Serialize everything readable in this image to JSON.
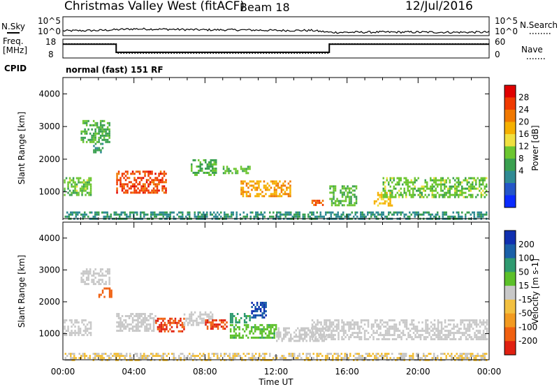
{
  "header": {
    "station": "Christmas Valley West (fitACF)",
    "beam": "Beam 18",
    "date": "12/Jul/2016"
  },
  "chart_data": [
    {
      "name": "noise-panel",
      "type": "line",
      "left_label": "N.Sky",
      "right_label": "N.Search",
      "left_ticks": [
        "10^5",
        "10^0"
      ],
      "right_ticks": [
        "10^5",
        "10^0"
      ],
      "description_series": [
        {
          "legend_style": "solid",
          "x_hours": [
            0,
            2,
            4,
            6,
            8,
            10,
            12,
            14,
            15,
            16,
            18,
            20,
            22,
            24
          ],
          "level": [
            0.2,
            0.22,
            0.3,
            0.28,
            0.25,
            0.25,
            0.22,
            0.22,
            0.12,
            0.12,
            0.13,
            0.13,
            0.12,
            0.13
          ]
        }
      ]
    },
    {
      "name": "freq-nave-panel",
      "type": "line",
      "left_label": [
        "Freq.",
        "[MHz]"
      ],
      "right_label": "Nave",
      "left_ticks": [
        "18",
        "8"
      ],
      "right_ticks": [
        "60",
        "0"
      ],
      "freq_mhz": {
        "x_hours": [
          0,
          3,
          3,
          15,
          15,
          24
        ],
        "y": [
          16,
          16,
          9.5,
          9.5,
          16,
          16
        ]
      },
      "nave": {
        "x_hours": [
          0,
          3,
          3,
          15,
          15,
          24
        ],
        "y": [
          45,
          45,
          15,
          15,
          45,
          45
        ]
      }
    },
    {
      "name": "cpid",
      "label": "CPID",
      "value": "normal (fast) 151 RF"
    },
    {
      "name": "power-panel",
      "type": "heatmap",
      "ylabel": "Slant Range [km]",
      "xlim": [
        0,
        24
      ],
      "ylim": [
        180,
        4500
      ],
      "yticks": [
        1000,
        2000,
        3000,
        4000
      ],
      "colorbar": {
        "label": "Power [dB]",
        "ticks": [
          "4",
          "8",
          "12",
          "16",
          "20",
          "24",
          "28"
        ],
        "colors": [
          "#0a2bff",
          "#2456c8",
          "#2f8a93",
          "#3aa050",
          "#6cc630",
          "#f0e040",
          "#f5b000",
          "#f07800",
          "#f03a00",
          "#e00000"
        ]
      },
      "features": [
        {
          "x": [
            0.05,
            1.6
          ],
          "y": [
            900,
            1450
          ],
          "value_db": 14
        },
        {
          "x": [
            1.0,
            2.6
          ],
          "y": [
            2550,
            3200
          ],
          "value_db": 12
        },
        {
          "x": [
            1.7,
            2.2
          ],
          "y": [
            2200,
            2500
          ],
          "value_db": 10
        },
        {
          "x": [
            3.0,
            5.8
          ],
          "y": [
            1000,
            1650
          ],
          "value_db": 27
        },
        {
          "x": [
            7.2,
            8.6
          ],
          "y": [
            1500,
            2000
          ],
          "value_db": 12
        },
        {
          "x": [
            9.0,
            10.5
          ],
          "y": [
            1550,
            1800
          ],
          "value_db": 14
        },
        {
          "x": [
            10.0,
            12.8
          ],
          "y": [
            850,
            1350
          ],
          "value_db": 22
        },
        {
          "x": [
            14.0,
            14.6
          ],
          "y": [
            620,
            760
          ],
          "value_db": 26
        },
        {
          "x": [
            15.0,
            16.5
          ],
          "y": [
            600,
            1200
          ],
          "value_db": 13
        },
        {
          "x": [
            17.5,
            18.5
          ],
          "y": [
            600,
            1000
          ],
          "value_db": 20
        },
        {
          "x": [
            18.0,
            23.9
          ],
          "y": [
            850,
            1450
          ],
          "value_db": 14
        },
        {
          "x": [
            0.1,
            23.9
          ],
          "y": [
            200,
            400
          ],
          "value_db": 9
        }
      ]
    },
    {
      "name": "velocity-panel",
      "type": "heatmap",
      "ylabel": "Slant Range [km]",
      "xlabel": "Time UT",
      "xlim": [
        0,
        24
      ],
      "ylim": [
        180,
        4500
      ],
      "yticks": [
        1000,
        2000,
        3000,
        4000
      ],
      "xticks": [
        "00:00",
        "04:00",
        "08:00",
        "12:00",
        "16:00",
        "20:00",
        "00:00"
      ],
      "colorbar": {
        "label": "Velocity [m s-1]",
        "ticks": [
          "200",
          "100",
          "50",
          "15",
          "-15",
          "-50",
          "-100",
          "-200"
        ],
        "colors": [
          "#1030b0",
          "#1a60a8",
          "#2f9a70",
          "#5cc02a",
          "#c8c8c8",
          "#f2c040",
          "#f29a20",
          "#f06010",
          "#e02010"
        ]
      },
      "features": [
        {
          "x": [
            0.05,
            1.6
          ],
          "y": [
            950,
            1450
          ],
          "value_ms": 0
        },
        {
          "x": [
            1.0,
            2.6
          ],
          "y": [
            2550,
            3050
          ],
          "value_ms": 0
        },
        {
          "x": [
            2.0,
            2.7
          ],
          "y": [
            2150,
            2450
          ],
          "value_ms": -180
        },
        {
          "x": [
            3.0,
            5.2
          ],
          "y": [
            1100,
            1650
          ],
          "value_ms": 0
        },
        {
          "x": [
            5.2,
            6.8
          ],
          "y": [
            1050,
            1500
          ],
          "value_ms": -200
        },
        {
          "x": [
            6.8,
            8.4
          ],
          "y": [
            1300,
            1700
          ],
          "value_ms": 0
        },
        {
          "x": [
            8.0,
            9.2
          ],
          "y": [
            1150,
            1450
          ],
          "value_ms": -200
        },
        {
          "x": [
            9.4,
            10.5
          ],
          "y": [
            1350,
            1650
          ],
          "value_ms": 60
        },
        {
          "x": [
            10.6,
            11.4
          ],
          "y": [
            1500,
            2000
          ],
          "value_ms": 200
        },
        {
          "x": [
            9.4,
            12.0
          ],
          "y": [
            900,
            1300
          ],
          "value_ms": 40
        },
        {
          "x": [
            12.0,
            15.0
          ],
          "y": [
            800,
            1200
          ],
          "value_ms": 0
        },
        {
          "x": [
            14.0,
            23.9
          ],
          "y": [
            850,
            1450
          ],
          "value_ms": 0
        },
        {
          "x": [
            0.1,
            23.9
          ],
          "y": [
            200,
            400
          ],
          "value_ms": -15
        }
      ]
    }
  ]
}
